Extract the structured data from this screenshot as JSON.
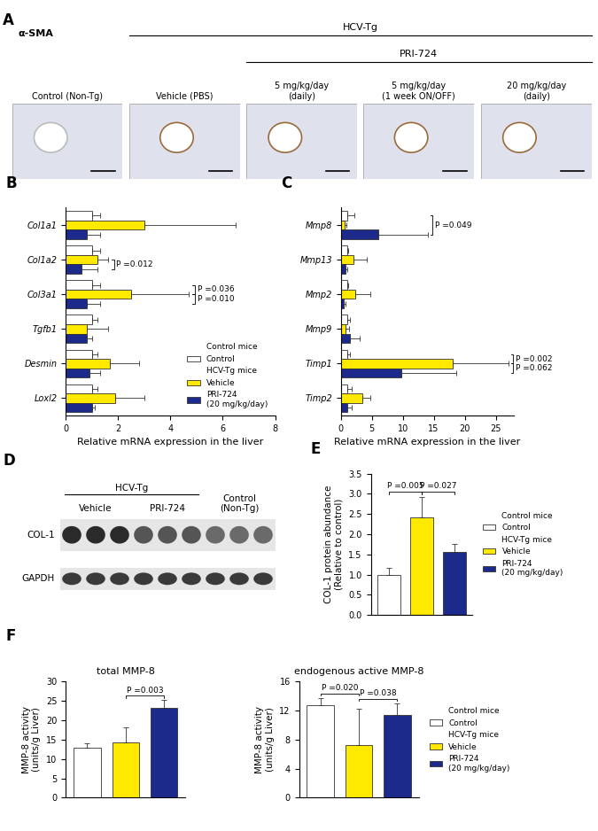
{
  "chart_data": [
    {
      "panel": "A",
      "type": "image_grid",
      "stain": "α-SMA",
      "header": "HCV-Tg",
      "subheader": "PRI-724",
      "images": [
        "Control (Non-Tg)",
        "Vehicle (PBS)",
        "5 mg/kg/day\n(daily)",
        "5 mg/kg/day\n(1 week ON/OFF)",
        "20 mg/kg/day\n(daily)"
      ]
    },
    {
      "type": "bar",
      "orientation": "horizontal",
      "series": [
        {
          "name": "Control",
          "group": "Control mice",
          "color": "#ffffff"
        },
        {
          "name": "Vehicle",
          "group": "HCV-Tg mice",
          "color": "#ffe900"
        },
        {
          "name": "PRI-724\n(20 mg/kg/day)",
          "group": "HCV-Tg mice",
          "color": "#1c2a8c"
        }
      ],
      "panels": [
        {
          "panel": "B",
          "categories": [
            "Col1a1",
            "Col1a2",
            "Col3a1",
            "Tgfb1",
            "Desmin",
            "Loxl2"
          ],
          "values": [
            [
              1.0,
              1.0,
              1.0,
              1.0,
              1.0,
              1.0
            ],
            [
              3.0,
              1.2,
              2.5,
              0.8,
              1.7,
              1.9
            ],
            [
              0.8,
              0.6,
              0.8,
              0.8,
              0.9,
              1.0
            ]
          ],
          "errors": [
            [
              0.3,
              0.3,
              0.3,
              0.2,
              0.2,
              0.2
            ],
            [
              3.5,
              0.4,
              2.2,
              0.8,
              1.1,
              1.1
            ],
            [
              0.5,
              0.6,
              0.5,
              0.2,
              0.4,
              0.1
            ]
          ],
          "xlabel": "Relative mRNA expression in the liver",
          "xlim": [
            0,
            8
          ],
          "xticks": [
            0,
            2,
            4,
            6,
            8
          ],
          "annotations": [
            {
              "text": "P =0.012",
              "category": "Col1a2",
              "pair": [
                "Vehicle",
                "PRI-724\n(20 mg/kg/day)"
              ]
            },
            {
              "text": "P =0.036",
              "category": "Col3a1",
              "pair": [
                "Control",
                "Vehicle"
              ]
            },
            {
              "text": "P =0.010",
              "category": "Col3a1",
              "pair": [
                "Vehicle",
                "PRI-724\n(20 mg/kg/day)"
              ]
            }
          ],
          "legend": "lower right"
        },
        {
          "panel": "C",
          "categories": [
            "Mmp8",
            "Mmp13",
            "Mmp2",
            "Mmp9",
            "Timp1",
            "Timp2"
          ],
          "values": [
            [
              1.0,
              1.0,
              1.0,
              1.0,
              1.0,
              1.0
            ],
            [
              0.6,
              2.0,
              2.3,
              0.8,
              18.0,
              3.5
            ],
            [
              6.0,
              0.8,
              0.5,
              1.5,
              9.7,
              1.0
            ]
          ],
          "errors": [
            [
              1.2,
              0.2,
              0.2,
              0.5,
              0.5,
              0.8
            ],
            [
              0.3,
              2.2,
              2.5,
              0.5,
              9.0,
              1.3
            ],
            [
              8.0,
              0.2,
              0.2,
              1.5,
              9.0,
              0.8
            ]
          ],
          "xlabel": "Relative mRNA expression in the liver",
          "xlim": [
            0,
            28
          ],
          "xticks": [
            0,
            5,
            10,
            15,
            20,
            25
          ],
          "annotations": [
            {
              "text": "P =0.049",
              "category": "Mmp8",
              "pair": [
                "Control",
                "PRI-724\n(20 mg/kg/day)"
              ]
            },
            {
              "text": "P =0.002",
              "category": "Timp1",
              "pair": [
                "Control",
                "Vehicle"
              ]
            },
            {
              "text": "P =0.062",
              "category": "Timp1",
              "pair": [
                "Vehicle",
                "PRI-724\n(20 mg/kg/day)"
              ]
            }
          ]
        }
      ]
    },
    {
      "panel": "D",
      "type": "blot",
      "header": "HCV-Tg",
      "lane_groups": [
        "Vehicle",
        "PRI-724",
        "Control\n(Non-Tg)"
      ],
      "rows": [
        "COL-1",
        "GAPDH"
      ]
    },
    {
      "type": "bar",
      "series": [
        {
          "name": "Control",
          "group": "Control mice",
          "color": "#ffffff"
        },
        {
          "name": "Vehicle",
          "group": "HCV-Tg mice",
          "color": "#ffe900"
        },
        {
          "name": "PRI-724\n(20 mg/kg/day)",
          "group": "HCV-Tg mice",
          "color": "#1c2a8c"
        }
      ],
      "panels": [
        {
          "panel": "E",
          "categories": [
            null
          ],
          "values": [
            [
              1.0
            ],
            [
              2.42
            ],
            [
              1.57
            ]
          ],
          "errors": [
            [
              0.17
            ],
            [
              0.5
            ],
            [
              0.18
            ]
          ],
          "ylabel": "COL-1 protein abundance\n(Relative to control)",
          "ylim": [
            0,
            3.5
          ],
          "yticks": [
            {
              "value": 0,
              "label": "0.0"
            },
            {
              "value": 0.5,
              "label": "0.5"
            },
            {
              "value": 1,
              "label": "1.0"
            },
            {
              "value": 1.5,
              "label": "1.5"
            },
            {
              "value": 2,
              "label": "2.0"
            },
            {
              "value": 2.5,
              "label": "2.5"
            },
            {
              "value": 3,
              "label": "3.0"
            },
            {
              "value": 3.5,
              "label": "3.5"
            }
          ],
          "tick_labels": "y",
          "annotations": [
            {
              "text": "P =0.005",
              "pair": [
                "Control",
                "Vehicle"
              ]
            },
            {
              "text": "P =0.027",
              "pair": [
                "Vehicle",
                "PRI-724\n(20 mg/kg/day)"
              ]
            }
          ],
          "legend": "right"
        }
      ]
    },
    {
      "type": "bar",
      "series": [
        {
          "name": "Control",
          "group": "Control mice",
          "color": "#ffffff"
        },
        {
          "name": "Vehicle",
          "group": "HCV-Tg mice",
          "color": "#ffe900"
        },
        {
          "name": "PRI-724\n(20 mg/kg/day)",
          "group": "HCV-Tg mice",
          "color": "#1c2a8c"
        }
      ],
      "panels": [
        {
          "panel": "F",
          "title": "total MMP-8",
          "categories": [
            null
          ],
          "values": [
            [
              12.8
            ],
            [
              14.2
            ],
            [
              23.2
            ]
          ],
          "errors": [
            [
              1.3
            ],
            [
              4.0
            ],
            [
              2.0
            ]
          ],
          "ylabel": "MMP-8 activity\n(units/g Liver)",
          "ylim": [
            0,
            30
          ],
          "yticks": [
            0,
            5,
            10,
            15,
            20,
            25,
            30
          ],
          "tick_labels": "y",
          "annotations": [
            {
              "text": "P =0.003",
              "pair": [
                "Vehicle",
                "PRI-724\n(20 mg/kg/day)"
              ]
            }
          ]
        },
        {
          "title": "endogenous active MMP-8",
          "categories": [
            null
          ],
          "values": [
            [
              12.7
            ],
            [
              7.3
            ],
            [
              11.4
            ]
          ],
          "errors": [
            [
              1.0
            ],
            [
              5.0
            ],
            [
              1.6
            ]
          ],
          "ylabel": "MMP-8 activity\n(units/g Liver)",
          "ylim": [
            0,
            16
          ],
          "yticks": [
            0,
            4,
            8,
            12,
            16
          ],
          "tick_labels": "y",
          "annotations": [
            {
              "text": "P =0.020",
              "pair": [
                "Control",
                "Vehicle"
              ]
            },
            {
              "text": "P =0.038",
              "pair": [
                "Vehicle",
                "PRI-724\n(20 mg/kg/day)"
              ]
            }
          ],
          "legend": "right"
        }
      ]
    }
  ]
}
